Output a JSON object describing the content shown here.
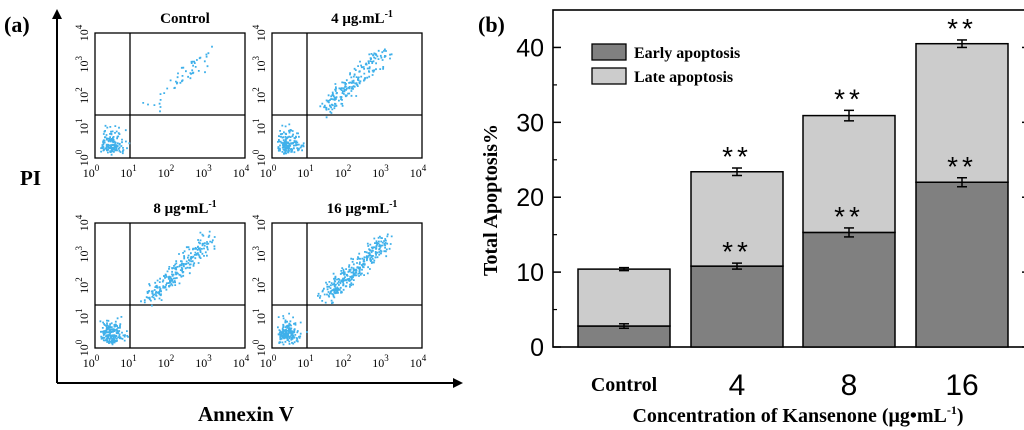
{
  "panel_a": {
    "label": "(a)",
    "y_axis_label": "PI",
    "x_axis_label": "Annexin V",
    "tick_mantissa": "10",
    "tick_exponents": [
      "0",
      "1",
      "2",
      "3",
      "4"
    ],
    "dot_color": "#3fb0ea",
    "subplots": [
      {
        "title": "Control",
        "title_main": "Control",
        "title_sup": "",
        "density": "low"
      },
      {
        "title": "4 μg.mL⁻¹",
        "title_main": "4 μg.mL",
        "title_sup": "-1",
        "density": "medium"
      },
      {
        "title": "8 μg•mL⁻¹",
        "title_main": "8 μg•mL",
        "title_sup": "-1",
        "density": "medium-high"
      },
      {
        "title": "16 μg•mL⁻¹",
        "title_main": "16 μg•mL",
        "title_sup": "-1",
        "density": "high"
      }
    ]
  },
  "panel_b": {
    "label": "(b)",
    "significance_marker": "**"
  },
  "chart_data": {
    "type": "bar",
    "stacked": true,
    "title": "",
    "xlabel": "Concentration of Kansenone (μg•mL⁻¹)",
    "xlabel_main": "Concentration of Kansenone (μg•mL",
    "xlabel_sup": "-1",
    "xlabel_tail": ")",
    "ylabel": "Total Apoptosis%",
    "ylim": [
      0,
      45
    ],
    "yticks": [
      0,
      10,
      20,
      30,
      40
    ],
    "categories": [
      "Control",
      "4",
      "8",
      "16"
    ],
    "legend_position": "top-left",
    "series": [
      {
        "name": "Early apoptosis",
        "color": "#808080",
        "values": [
          2.8,
          10.8,
          15.3,
          22.0
        ],
        "errors": [
          0.3,
          0.4,
          0.6,
          0.6
        ],
        "significance": [
          false,
          true,
          true,
          true
        ]
      },
      {
        "name": "Late apoptosis",
        "color": "#cccccc",
        "values": [
          7.6,
          12.6,
          15.6,
          18.5
        ],
        "errors": [
          0.2,
          0.5,
          0.7,
          0.5
        ],
        "significance": [
          false,
          true,
          true,
          true
        ]
      }
    ]
  }
}
